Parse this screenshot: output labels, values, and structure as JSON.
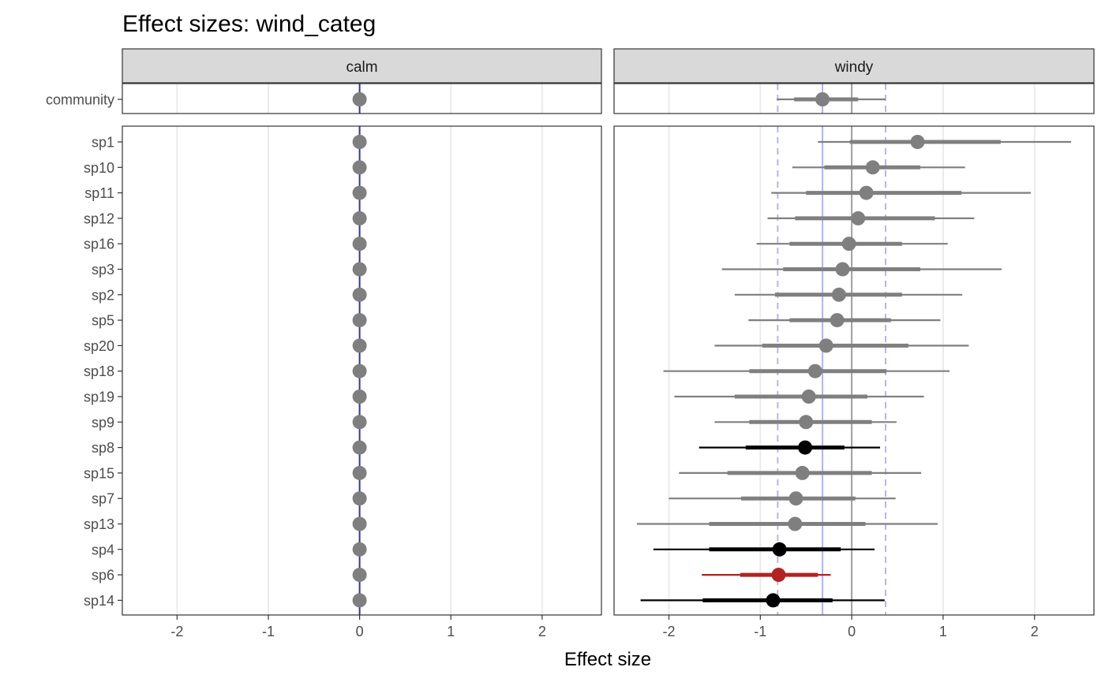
{
  "chart_data": {
    "type": "scatter",
    "title": "Effect sizes: wind_categ",
    "xlabel": "Effect size",
    "ylabel": "",
    "xlim": [
      -2.6,
      2.65
    ],
    "x_ticks": [
      -2,
      -1,
      0,
      1,
      2
    ],
    "x_tick_labels": [
      "-2",
      "-1",
      "0",
      "1",
      "2"
    ],
    "grid": true,
    "facets": [
      "calm",
      "windy"
    ],
    "colors": {
      "default": "#7f7f7f",
      "strong": "#000000",
      "highlight": "#b22222",
      "reference_line": "#b3b3ff",
      "calm_zero_line": "#3333aa",
      "zero_line": "#a0a0a0"
    },
    "community": {
      "label": "community",
      "calm": {
        "mean": 0
      },
      "windy": {
        "mean": -0.32,
        "lo50": -0.63,
        "hi50": 0.07,
        "lo95": -0.82,
        "hi95": 0.37
      }
    },
    "species": [
      {
        "label": "sp1",
        "calm": 0,
        "windy": {
          "mean": 0.72,
          "lo50": -0.02,
          "hi50": 1.63,
          "lo95": -0.37,
          "hi95": 2.4
        },
        "color": "default"
      },
      {
        "label": "sp10",
        "calm": 0,
        "windy": {
          "mean": 0.23,
          "lo50": -0.3,
          "hi50": 0.75,
          "lo95": -0.65,
          "hi95": 1.24
        },
        "color": "default"
      },
      {
        "label": "sp11",
        "calm": 0,
        "windy": {
          "mean": 0.16,
          "lo50": -0.5,
          "hi50": 1.2,
          "lo95": -0.88,
          "hi95": 1.96
        },
        "color": "default"
      },
      {
        "label": "sp12",
        "calm": 0,
        "windy": {
          "mean": 0.07,
          "lo50": -0.62,
          "hi50": 0.91,
          "lo95": -0.92,
          "hi95": 1.34
        },
        "color": "default"
      },
      {
        "label": "sp16",
        "calm": 0,
        "windy": {
          "mean": -0.03,
          "lo50": -0.68,
          "hi50": 0.55,
          "lo95": -1.04,
          "hi95": 1.05
        },
        "color": "default"
      },
      {
        "label": "sp3",
        "calm": 0,
        "windy": {
          "mean": -0.1,
          "lo50": -0.75,
          "hi50": 0.75,
          "lo95": -1.42,
          "hi95": 1.64
        },
        "color": "default"
      },
      {
        "label": "sp2",
        "calm": 0,
        "windy": {
          "mean": -0.14,
          "lo50": -0.84,
          "hi50": 0.55,
          "lo95": -1.28,
          "hi95": 1.21
        },
        "color": "default"
      },
      {
        "label": "sp5",
        "calm": 0,
        "windy": {
          "mean": -0.16,
          "lo50": -0.68,
          "hi50": 0.43,
          "lo95": -1.13,
          "hi95": 0.97
        },
        "color": "default"
      },
      {
        "label": "sp20",
        "calm": 0,
        "windy": {
          "mean": -0.28,
          "lo50": -0.98,
          "hi50": 0.62,
          "lo95": -1.5,
          "hi95": 1.28
        },
        "color": "default"
      },
      {
        "label": "sp18",
        "calm": 0,
        "windy": {
          "mean": -0.4,
          "lo50": -1.12,
          "hi50": 0.38,
          "lo95": -2.06,
          "hi95": 1.07
        },
        "color": "default"
      },
      {
        "label": "sp19",
        "calm": 0,
        "windy": {
          "mean": -0.47,
          "lo50": -1.28,
          "hi50": 0.17,
          "lo95": -1.94,
          "hi95": 0.79
        },
        "color": "default"
      },
      {
        "label": "sp9",
        "calm": 0,
        "windy": {
          "mean": -0.5,
          "lo50": -1.12,
          "hi50": 0.22,
          "lo95": -1.5,
          "hi95": 0.49
        },
        "color": "default"
      },
      {
        "label": "sp8",
        "calm": 0,
        "windy": {
          "mean": -0.51,
          "lo50": -1.16,
          "hi50": -0.08,
          "lo95": -1.67,
          "hi95": 0.31
        },
        "color": "strong"
      },
      {
        "label": "sp15",
        "calm": 0,
        "windy": {
          "mean": -0.54,
          "lo50": -1.36,
          "hi50": 0.22,
          "lo95": -1.89,
          "hi95": 0.76
        },
        "color": "default"
      },
      {
        "label": "sp7",
        "calm": 0,
        "windy": {
          "mean": -0.61,
          "lo50": -1.21,
          "hi50": 0.04,
          "lo95": -2.0,
          "hi95": 0.48
        },
        "color": "default"
      },
      {
        "label": "sp13",
        "calm": 0,
        "windy": {
          "mean": -0.62,
          "lo50": -1.56,
          "hi50": 0.15,
          "lo95": -2.35,
          "hi95": 0.94
        },
        "color": "default"
      },
      {
        "label": "sp4",
        "calm": 0,
        "windy": {
          "mean": -0.79,
          "lo50": -1.56,
          "hi50": -0.12,
          "lo95": -2.17,
          "hi95": 0.25
        },
        "color": "strong"
      },
      {
        "label": "sp6",
        "calm": 0,
        "windy": {
          "mean": -0.8,
          "lo50": -1.22,
          "hi50": -0.37,
          "lo95": -1.64,
          "hi95": -0.23
        },
        "color": "highlight"
      },
      {
        "label": "sp14",
        "calm": 0,
        "windy": {
          "mean": -0.86,
          "lo50": -1.63,
          "hi50": -0.21,
          "lo95": -2.31,
          "hi95": 0.36
        },
        "color": "strong"
      }
    ],
    "windy_reference": {
      "mean": -0.32,
      "lower": -0.81,
      "upper": 0.37
    }
  }
}
